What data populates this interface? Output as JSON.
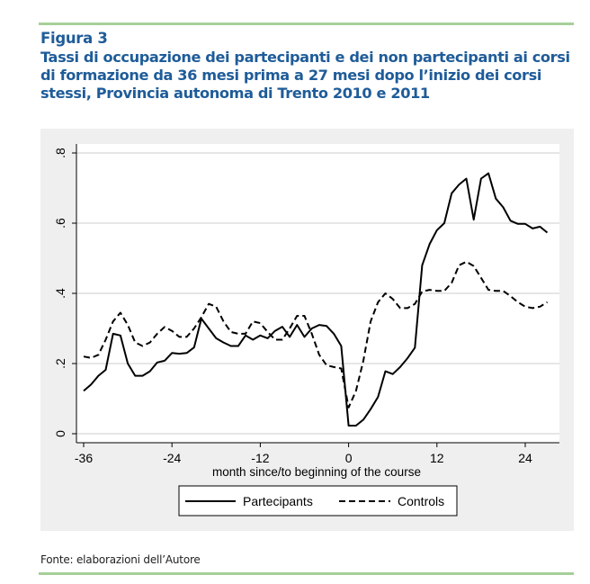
{
  "header": {
    "figure_label": "Figura 3",
    "title": "Tassi di occupazione dei partecipanti e dei non partecipanti ai corsi di formazione da 36 mesi prima a 27 mesi dopo l’inizio dei corsi stessi, Provincia autonoma di Trento 2010 e 2011"
  },
  "footer": {
    "source": "Fonte: elaborazioni dell’Autore"
  },
  "colors": {
    "title": "#1f5c99",
    "rule": "#a6cf98",
    "panel": "#efefef",
    "grid": "#e6e6e6",
    "line": "#000000"
  },
  "chart_data": {
    "type": "line",
    "title": "",
    "xlabel": "month since/to beginning of the course",
    "ylabel": "",
    "xlim": [
      -36,
      27
    ],
    "ylim": [
      0,
      0.8
    ],
    "grid": true,
    "legend_placement": "bottom",
    "x_ticks": [
      "-36",
      "-24",
      "-12",
      "0",
      "12",
      "24"
    ],
    "x_tick_values": [
      -36,
      -24,
      -12,
      0,
      12,
      24
    ],
    "y_ticks": [
      "0",
      ".2",
      ".4",
      ".6",
      ".8"
    ],
    "y_tick_values": [
      0,
      0.2,
      0.4,
      0.6,
      0.8
    ],
    "x": [
      -36,
      -35,
      -34,
      -33,
      -32,
      -31,
      -30,
      -29,
      -28,
      -27,
      -26,
      -25,
      -24,
      -23,
      -22,
      -21,
      -20,
      -19,
      -18,
      -17,
      -16,
      -15,
      -14,
      -13,
      -12,
      -11,
      -10,
      -9,
      -8,
      -7,
      -6,
      -5,
      -4,
      -3,
      -2,
      -1,
      0,
      1,
      2,
      3,
      4,
      5,
      6,
      7,
      8,
      9,
      10,
      11,
      12,
      13,
      14,
      15,
      16,
      17,
      18,
      19,
      20,
      21,
      22,
      23,
      24,
      25,
      26,
      27
    ],
    "series": [
      {
        "name": "Partecipants",
        "style": "solid",
        "values": [
          0.122,
          0.14,
          0.165,
          0.182,
          0.285,
          0.28,
          0.2,
          0.165,
          0.165,
          0.178,
          0.203,
          0.208,
          0.23,
          0.228,
          0.23,
          0.246,
          0.328,
          0.3,
          0.272,
          0.26,
          0.25,
          0.25,
          0.28,
          0.268,
          0.28,
          0.272,
          0.293,
          0.305,
          0.276,
          0.31,
          0.276,
          0.3,
          0.31,
          0.307,
          0.285,
          0.25,
          0.023,
          0.023,
          0.04,
          0.07,
          0.105,
          0.178,
          0.17,
          0.19,
          0.215,
          0.245,
          0.48,
          0.54,
          0.58,
          0.6,
          0.685,
          0.71,
          0.727,
          0.61,
          0.727,
          0.742,
          0.67,
          0.645,
          0.607,
          0.598,
          0.598,
          0.585,
          0.59,
          0.573
        ]
      },
      {
        "name": "Controls",
        "style": "dashed",
        "values": [
          0.22,
          0.216,
          0.225,
          0.268,
          0.32,
          0.345,
          0.31,
          0.26,
          0.25,
          0.26,
          0.285,
          0.304,
          0.293,
          0.276,
          0.276,
          0.3,
          0.332,
          0.37,
          0.362,
          0.32,
          0.29,
          0.285,
          0.285,
          0.32,
          0.315,
          0.29,
          0.268,
          0.268,
          0.3,
          0.336,
          0.336,
          0.285,
          0.225,
          0.195,
          0.19,
          0.186,
          0.075,
          0.122,
          0.208,
          0.32,
          0.375,
          0.4,
          0.384,
          0.358,
          0.358,
          0.37,
          0.405,
          0.41,
          0.407,
          0.407,
          0.43,
          0.48,
          0.49,
          0.478,
          0.444,
          0.41,
          0.407,
          0.407,
          0.392,
          0.375,
          0.362,
          0.358,
          0.362,
          0.375
        ]
      }
    ]
  }
}
